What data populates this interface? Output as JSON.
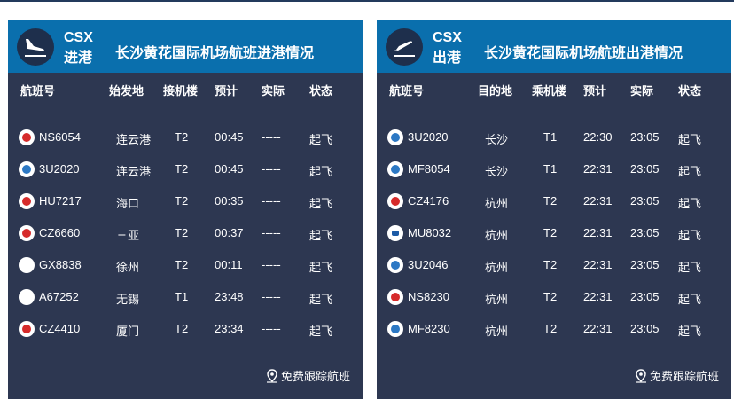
{
  "arrivals": {
    "code": "CSX",
    "kind": "进港",
    "title": "长沙黄花国际机场航班进港情况",
    "columns": [
      "航班号",
      "始发地",
      "接机楼",
      "预计",
      "实际",
      "状态"
    ],
    "rows": [
      {
        "logo": "red-airline-logo",
        "flight": "NS6054",
        "place": "连云港",
        "terminal": "T2",
        "est": "00:45",
        "act": "-----",
        "status": "起飞"
      },
      {
        "logo": "blue-airline-logo",
        "flight": "3U2020",
        "place": "连云港",
        "terminal": "T2",
        "est": "00:45",
        "act": "-----",
        "status": "起飞"
      },
      {
        "logo": "red-airline-logo",
        "flight": "HU7217",
        "place": "海口",
        "terminal": "T2",
        "est": "00:35",
        "act": "-----",
        "status": "起飞"
      },
      {
        "logo": "red-airline-logo",
        "flight": "CZ6660",
        "place": "三亚",
        "terminal": "T2",
        "est": "00:37",
        "act": "-----",
        "status": "起飞"
      },
      {
        "logo": "plain-airline-logo",
        "flight": "GX8838",
        "place": "徐州",
        "terminal": "T2",
        "est": "00:11",
        "act": "-----",
        "status": "起飞"
      },
      {
        "logo": "plain-airline-logo",
        "flight": "A67252",
        "place": "无锡",
        "terminal": "T1",
        "est": "23:48",
        "act": "-----",
        "status": "起飞"
      },
      {
        "logo": "red-airline-logo",
        "flight": "CZ4410",
        "place": "厦门",
        "terminal": "T2",
        "est": "23:34",
        "act": "-----",
        "status": "起飞"
      }
    ],
    "track_label": "免费跟踪航班"
  },
  "departures": {
    "code": "CSX",
    "kind": "出港",
    "title": "长沙黄花国际机场航班出港情况",
    "columns": [
      "航班号",
      "目的地",
      "乘机楼",
      "预计",
      "实际",
      "状态"
    ],
    "rows": [
      {
        "logo": "blue-airline-logo",
        "flight": "3U2020",
        "place": "长沙",
        "terminal": "T1",
        "est": "22:30",
        "act": "23:05",
        "status": "起飞"
      },
      {
        "logo": "blue-airline-logo",
        "flight": "MF8054",
        "place": "长沙",
        "terminal": "T1",
        "est": "22:31",
        "act": "23:05",
        "status": "起飞"
      },
      {
        "logo": "red-airline-logo",
        "flight": "CZ4176",
        "place": "杭州",
        "terminal": "T2",
        "est": "22:31",
        "act": "23:05",
        "status": "起飞"
      },
      {
        "logo": "navy-airline-logo",
        "flight": "MU8032",
        "place": "杭州",
        "terminal": "T2",
        "est": "22:31",
        "act": "23:05",
        "status": "起飞"
      },
      {
        "logo": "blue-airline-logo",
        "flight": "3U2046",
        "place": "杭州",
        "terminal": "T2",
        "est": "22:31",
        "act": "23:05",
        "status": "起飞"
      },
      {
        "logo": "red-airline-logo",
        "flight": "NS8230",
        "place": "杭州",
        "terminal": "T2",
        "est": "22:31",
        "act": "23:05",
        "status": "起飞"
      },
      {
        "logo": "blue-airline-logo",
        "flight": "MF8230",
        "place": "杭州",
        "terminal": "T2",
        "est": "22:31",
        "act": "23:05",
        "status": "起飞"
      }
    ],
    "track_label": "免费跟踪航班"
  },
  "colors": {
    "header_blue": "#0a6fad",
    "panel_navy": "#2d3751"
  },
  "icons": {
    "arrival": "plane-landing-icon",
    "departure": "plane-takeoff-icon",
    "track": "location-pin-icon"
  }
}
